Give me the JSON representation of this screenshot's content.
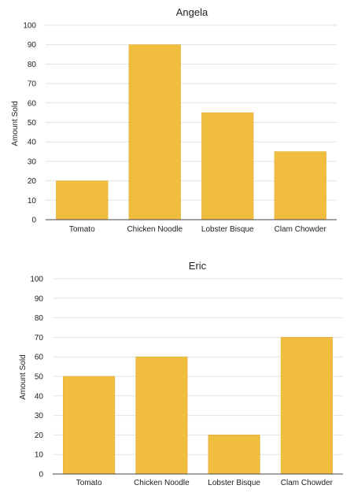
{
  "chart_data": [
    {
      "type": "bar",
      "title": "Angela",
      "ylabel": "Amount Sold",
      "xlabel": "",
      "categories": [
        "Tomato",
        "Chicken Noodle",
        "Lobster Bisque",
        "Clam Chowder"
      ],
      "values": [
        20,
        90,
        55,
        35
      ],
      "ylim": [
        0,
        100
      ],
      "yticks": [
        0,
        10,
        20,
        30,
        40,
        50,
        60,
        70,
        80,
        90,
        100
      ],
      "grid": true,
      "bar_color": "#f0bd3f"
    },
    {
      "type": "bar",
      "title": "Eric",
      "ylabel": "Amount Sold",
      "xlabel": "",
      "categories": [
        "Tomato",
        "Chicken Noodle",
        "Lobster Bisque",
        "Clam Chowder"
      ],
      "values": [
        50,
        60,
        20,
        70
      ],
      "ylim": [
        0,
        100
      ],
      "yticks": [
        0,
        10,
        20,
        30,
        40,
        50,
        60,
        70,
        80,
        90,
        100
      ],
      "grid": true,
      "bar_color": "#f0bd3f"
    }
  ]
}
